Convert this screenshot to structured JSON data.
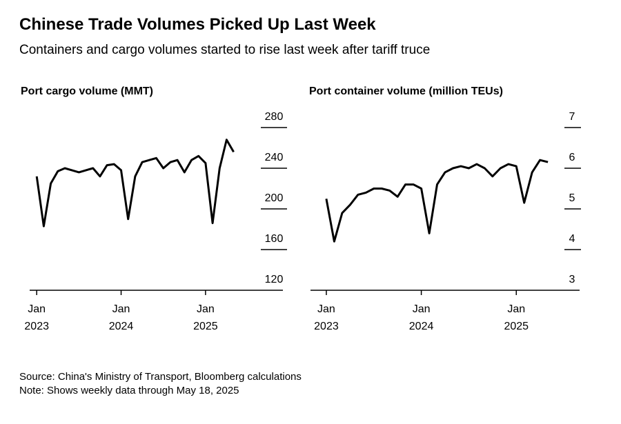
{
  "title": "Chinese Trade Volumes Picked Up Last Week",
  "subtitle": "Containers and cargo volumes started to rise last week after tariff truce",
  "source": "Source: China's Ministry of Transport, Bloomberg calculations",
  "note": "Note: Shows weekly data through May 18, 2025",
  "chart_data": [
    {
      "type": "line",
      "title": "Port cargo volume (MMT)",
      "color": "#000000",
      "x": [
        "2023-01",
        "2023-02",
        "2023-03",
        "2023-04",
        "2023-05",
        "2023-06",
        "2023-07",
        "2023-08",
        "2023-09",
        "2023-10",
        "2023-11",
        "2023-12",
        "2024-01",
        "2024-02",
        "2024-03",
        "2024-04",
        "2024-05",
        "2024-06",
        "2024-07",
        "2024-08",
        "2024-09",
        "2024-10",
        "2024-11",
        "2024-12",
        "2025-01",
        "2025-02",
        "2025-03",
        "2025-04",
        "2025-05"
      ],
      "series": [
        {
          "name": "Port cargo volume",
          "color": "#000000",
          "values": [
            232,
            183,
            225,
            237,
            240,
            238,
            236,
            238,
            240,
            232,
            243,
            244,
            238,
            190,
            232,
            246,
            248,
            250,
            240,
            246,
            248,
            236,
            248,
            252,
            245,
            186,
            240,
            268,
            256
          ]
        }
      ],
      "xlim": [
        "2022-12",
        "2025-12"
      ],
      "xticks": [
        {
          "value": "2023-01",
          "label": "Jan 2023"
        },
        {
          "value": "2024-01",
          "label": "Jan 2024"
        },
        {
          "value": "2025-01",
          "label": "Jan 2025"
        }
      ],
      "ylim": [
        120,
        280
      ],
      "yticks": [
        120,
        160,
        200,
        240,
        280
      ]
    },
    {
      "type": "line",
      "title": "Port container volume (million TEUs)",
      "color": "#000000",
      "x": [
        "2023-01",
        "2023-02",
        "2023-03",
        "2023-04",
        "2023-05",
        "2023-06",
        "2023-07",
        "2023-08",
        "2023-09",
        "2023-10",
        "2023-11",
        "2023-12",
        "2024-01",
        "2024-02",
        "2024-03",
        "2024-04",
        "2024-05",
        "2024-06",
        "2024-07",
        "2024-08",
        "2024-09",
        "2024-10",
        "2024-11",
        "2024-12",
        "2025-01",
        "2025-02",
        "2025-03",
        "2025-04",
        "2025-05"
      ],
      "series": [
        {
          "name": "Port container volume",
          "color": "#000000",
          "values": [
            5.25,
            4.2,
            4.9,
            5.1,
            5.35,
            5.4,
            5.5,
            5.5,
            5.45,
            5.3,
            5.6,
            5.6,
            5.5,
            4.4,
            5.6,
            5.9,
            6.0,
            6.05,
            6.0,
            6.1,
            6.0,
            5.8,
            6.0,
            6.1,
            6.05,
            5.15,
            5.9,
            6.2,
            6.15
          ]
        }
      ],
      "xlim": [
        "2022-11",
        "2025-09"
      ],
      "xticks": [
        {
          "value": "2023-01",
          "label": "Jan 2023"
        },
        {
          "value": "2024-01",
          "label": "Jan 2024"
        },
        {
          "value": "2025-01",
          "label": "Jan 2025"
        }
      ],
      "ylim": [
        3,
        7
      ],
      "yticks": [
        3,
        4,
        5,
        6,
        7
      ]
    }
  ]
}
